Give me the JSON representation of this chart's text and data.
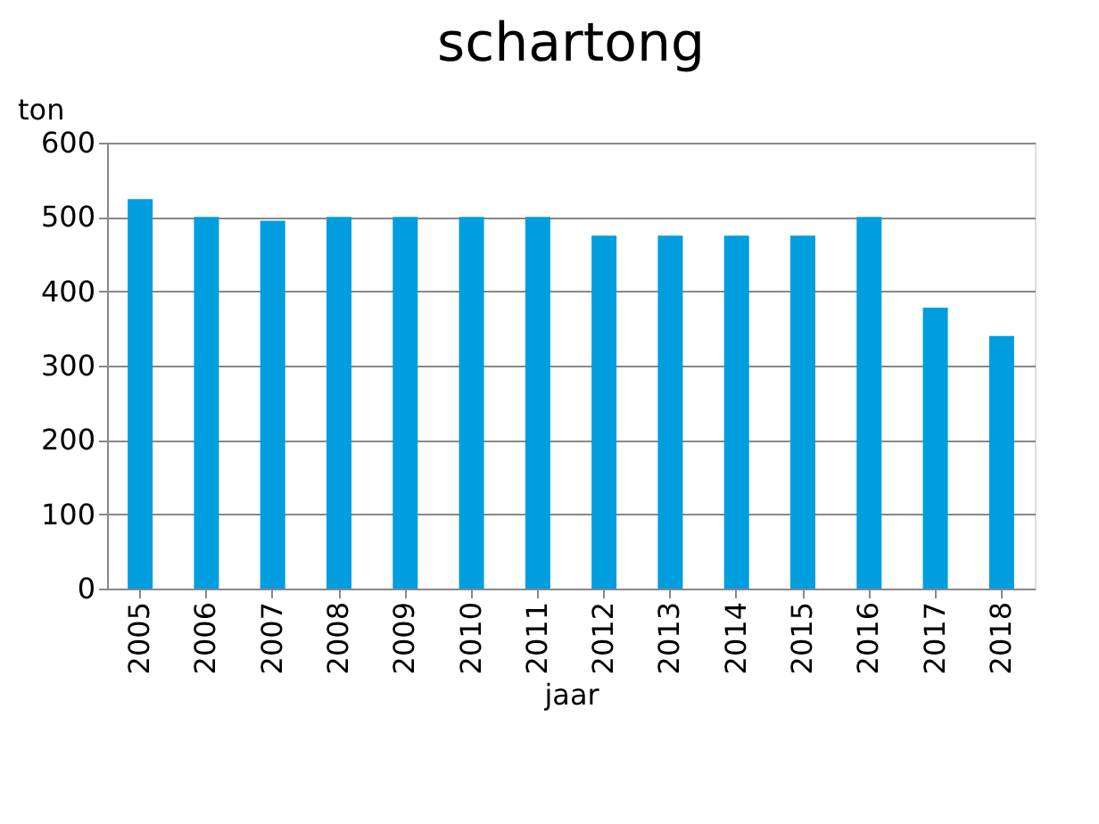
{
  "chart_data": {
    "type": "bar",
    "title": "schartong",
    "xlabel": "jaar",
    "ylabel": "ton",
    "categories": [
      "2005",
      "2006",
      "2007",
      "2008",
      "2009",
      "2010",
      "2011",
      "2012",
      "2013",
      "2014",
      "2015",
      "2016",
      "2017",
      "2018"
    ],
    "values": [
      524,
      500,
      495,
      500,
      500,
      500,
      500,
      475,
      475,
      475,
      475,
      500,
      378,
      340
    ],
    "color": "#009ddf",
    "ylim": [
      0,
      600
    ],
    "yticks": [
      0,
      100,
      200,
      300,
      400,
      500,
      600
    ],
    "grid": "y"
  }
}
